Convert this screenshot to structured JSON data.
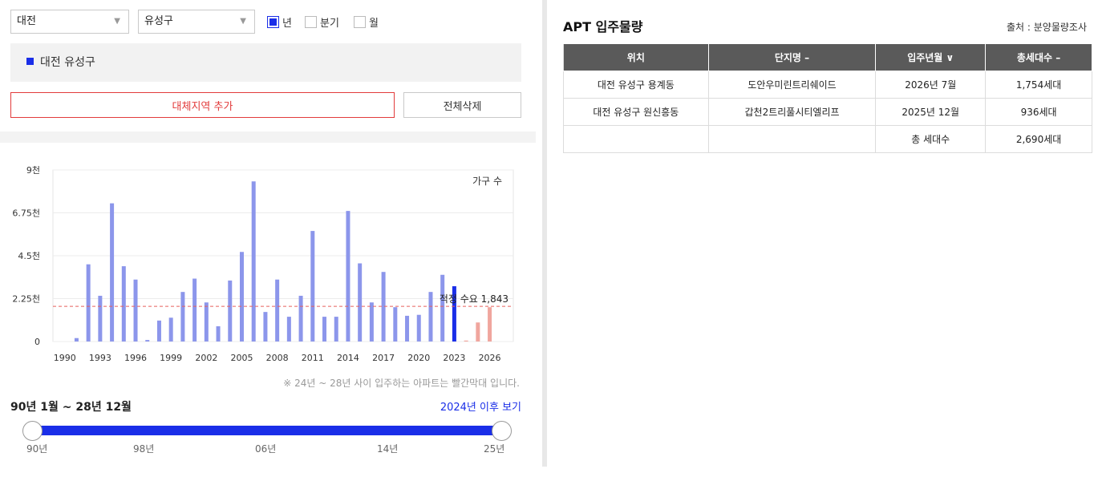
{
  "filters": {
    "city": "대전",
    "district": "유성구",
    "period_options": [
      {
        "label": "년",
        "checked": true
      },
      {
        "label": "분기",
        "checked": false
      },
      {
        "label": "월",
        "checked": false
      }
    ]
  },
  "selected_region": "대전 유성구",
  "buttons": {
    "add_region": "대체지역 추가",
    "delete_all": "전체삭제"
  },
  "chart_data": {
    "type": "bar",
    "legend_label": "가구 수",
    "y_ticks": [
      "9천",
      "6.75천",
      "4.5천",
      "2.25천",
      "0"
    ],
    "ylim": [
      0,
      9000
    ],
    "x_ticks": [
      "1990",
      "1993",
      "1996",
      "1999",
      "2002",
      "2005",
      "2008",
      "2011",
      "2014",
      "2017",
      "2020",
      "2023",
      "2026"
    ],
    "years": [
      1990,
      1991,
      1992,
      1993,
      1994,
      1995,
      1996,
      1997,
      1998,
      1999,
      2000,
      2001,
      2002,
      2003,
      2004,
      2005,
      2006,
      2007,
      2008,
      2009,
      2010,
      2011,
      2012,
      2013,
      2014,
      2015,
      2016,
      2017,
      2018,
      2019,
      2020,
      2021,
      2022,
      2023,
      2024,
      2025,
      2026
    ],
    "values": [
      0,
      180,
      4050,
      2400,
      7250,
      3950,
      3250,
      80,
      1100,
      1250,
      2600,
      3300,
      2050,
      800,
      3200,
      4700,
      8400,
      1550,
      3250,
      1300,
      2400,
      5800,
      1300,
      1300,
      6850,
      4100,
      2050,
      3650,
      1800,
      1350,
      1400,
      2600,
      3500,
      2900,
      50,
      1000,
      1800
    ],
    "highlight_year": 2023,
    "future_years": [
      2024,
      2025,
      2026
    ],
    "reference_line": {
      "label": "적정 수요 1,843",
      "value": 1843
    },
    "colors": {
      "bar": "#8c96eb",
      "highlight": "#1a2ee8",
      "future": "#f0a69e",
      "reference": "#e8605c"
    }
  },
  "note": "※ 24년 ~ 28년 사이 입주하는 아파트는 빨간막대 입니다.",
  "range": {
    "label": "90년 1월 ~ 28년 12월",
    "link": "2024년 이후 보기",
    "ticks": [
      "90년",
      "98년",
      "06년",
      "14년",
      "25년"
    ]
  },
  "apt": {
    "title": "APT 입주물량",
    "source": "출처 : 분양물량조사",
    "headers": [
      "위치",
      "단지명 –",
      "입주년월 ∨",
      "총세대수 –"
    ],
    "rows": [
      [
        "대전 유성구 용계동",
        "도안우미린트리쉐이드",
        "2026년 7월",
        "1,754세대"
      ],
      [
        "대전 유성구 원신흥동",
        "갑천2트리풀시티엘리프",
        "2025년 12월",
        "936세대"
      ],
      [
        "",
        "",
        "총 세대수",
        "2,690세대"
      ]
    ]
  }
}
